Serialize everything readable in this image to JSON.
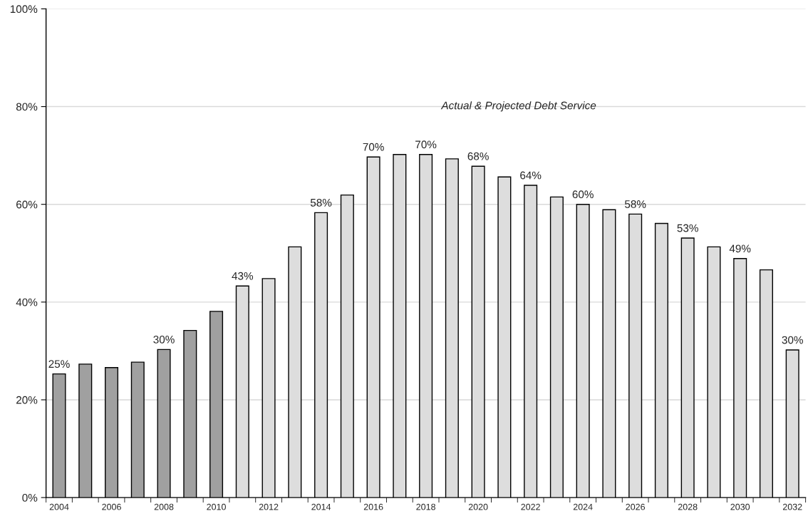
{
  "chart_data": {
    "type": "bar",
    "categories": [
      "2004",
      null,
      "2006",
      null,
      "2008",
      null,
      "2010",
      null,
      "2012",
      null,
      "2014",
      null,
      "2016",
      null,
      "2018",
      null,
      "2020",
      null,
      "2022",
      null,
      "2024",
      null,
      "2026",
      null,
      "2028",
      null,
      "2030",
      null,
      "2032"
    ],
    "values": [
      25.3,
      27.3,
      26.6,
      27.7,
      30.3,
      34.2,
      38.1,
      43.3,
      44.8,
      51.3,
      58.3,
      61.9,
      69.7,
      70.2,
      70.2,
      69.3,
      67.8,
      65.6,
      63.9,
      61.5,
      60.0,
      58.9,
      58.0,
      56.1,
      53.1,
      51.3,
      48.9,
      46.6,
      30.2
    ],
    "colors": [
      "#a0a0a0",
      "#a0a0a0",
      "#a0a0a0",
      "#a0a0a0",
      "#a0a0a0",
      "#a0a0a0",
      "#a0a0a0",
      "#dddddd",
      "#dddddd",
      "#dddddd",
      "#dddddd",
      "#dddddd",
      "#dddddd",
      "#dddddd",
      "#dddddd",
      "#dddddd",
      "#dddddd",
      "#dddddd",
      "#dddddd",
      "#dddddd",
      "#dddddd",
      "#dddddd",
      "#dddddd",
      "#dddddd",
      "#dddddd",
      "#dddddd",
      "#dddddd",
      "#dddddd",
      "#dddddd"
    ],
    "value_labels": [
      "25%",
      null,
      null,
      null,
      "30%",
      null,
      null,
      "43%",
      null,
      null,
      "58%",
      null,
      "70%",
      null,
      "70%",
      null,
      "68%",
      null,
      "64%",
      null,
      "60%",
      null,
      "58%",
      null,
      "53%",
      null,
      "49%",
      null,
      "30%"
    ],
    "ylim": [
      0,
      100
    ],
    "yticks": [
      {
        "value": 0,
        "label": "0%"
      },
      {
        "value": 20,
        "label": "20%"
      },
      {
        "value": 40,
        "label": "40%"
      },
      {
        "value": 60,
        "label": "60%"
      },
      {
        "value": 80,
        "label": "80%"
      },
      {
        "value": 100,
        "label": "100%"
      }
    ],
    "grid": "y",
    "annotations": [
      "Actual & Projected Debt Service"
    ],
    "legend": false
  }
}
